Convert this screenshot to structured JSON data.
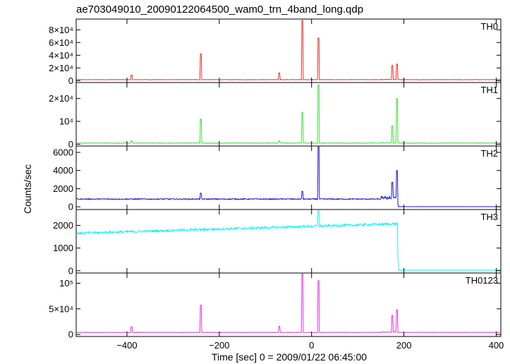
{
  "chart_data": {
    "type": "line",
    "title": "ae703049010_20090122064500_wam0_trn_4band_long.qdp",
    "xlabel": "Time [sec] 0 = 2009/01/22 06:45:00",
    "ylabel": "Counts/sec",
    "xlim": [
      -510,
      410
    ],
    "x_ticks": [
      {
        "value": -400,
        "label": "−400"
      },
      {
        "value": -200,
        "label": "−200"
      },
      {
        "value": 0,
        "label": "0"
      },
      {
        "value": 200,
        "label": "200"
      },
      {
        "value": 400,
        "label": "400"
      }
    ],
    "panels": [
      {
        "label": "TH0",
        "color": "#e8302a",
        "ylim": [
          -3000,
          97000
        ],
        "baseline": 1500,
        "noise": 300,
        "drop": false,
        "yticks": [
          {
            "value": 0,
            "label": "0"
          },
          {
            "value": 20000,
            "label": "2×10⁴"
          },
          {
            "value": 40000,
            "label": "4×10⁴"
          },
          {
            "value": 60000,
            "label": "6×10⁴"
          },
          {
            "value": 80000,
            "label": "8×10⁴"
          }
        ],
        "spikes": [
          [
            -390,
            9000
          ],
          [
            -240,
            42000
          ],
          [
            -70,
            12000
          ],
          [
            -20,
            95000
          ],
          [
            15,
            67000
          ],
          [
            175,
            24000
          ],
          [
            185,
            26000
          ]
        ]
      },
      {
        "label": "TH1",
        "color": "#3fe03a",
        "ylim": [
          -800,
          27000
        ],
        "baseline": 500,
        "noise": 120,
        "drop": false,
        "yticks": [
          {
            "value": 0,
            "label": "0"
          },
          {
            "value": 10000,
            "label": "10⁴"
          },
          {
            "value": 20000,
            "label": "2×10⁴"
          }
        ],
        "spikes": [
          [
            -390,
            1500
          ],
          [
            -240,
            11000
          ],
          [
            -70,
            1500
          ],
          [
            -20,
            14000
          ],
          [
            15,
            26000
          ],
          [
            175,
            8000
          ],
          [
            185,
            20000
          ]
        ]
      },
      {
        "label": "TH2",
        "color": "#1a1ac8",
        "ylim": [
          -300,
          6700
        ],
        "baseline": 850,
        "noise": 60,
        "drop": true,
        "yticks": [
          {
            "value": 0,
            "label": "0"
          },
          {
            "value": 2000,
            "label": "2000"
          },
          {
            "value": 4000,
            "label": "4000"
          },
          {
            "value": 6000,
            "label": "6000"
          }
        ],
        "spikes": [
          [
            -240,
            1500
          ],
          [
            -20,
            1700
          ],
          [
            15,
            6600
          ],
          [
            175,
            2700
          ],
          [
            185,
            4000
          ]
        ]
      },
      {
        "label": "TH3",
        "color": "#1ef0f0",
        "ylim": [
          -100,
          2700
        ],
        "baseline": 1650,
        "slope": 0.6,
        "noise": 55,
        "drop": true,
        "yticks": [
          {
            "value": 0,
            "label": "0"
          },
          {
            "value": 1000,
            "label": "1000"
          },
          {
            "value": 2000,
            "label": "2000"
          }
        ],
        "spikes": [
          [
            15,
            2650
          ]
        ]
      },
      {
        "label": "TH0123",
        "color": "#e830e8",
        "ylim": [
          -4000,
          120000
        ],
        "baseline": 4000,
        "noise": 400,
        "drop": false,
        "yticks": [
          {
            "value": 0,
            "label": "0"
          },
          {
            "value": 50000,
            "label": "5×10⁴"
          },
          {
            "value": 100000,
            "label": "10⁵"
          }
        ],
        "spikes": [
          [
            -390,
            15000
          ],
          [
            -240,
            57000
          ],
          [
            -70,
            16000
          ],
          [
            -20,
            118000
          ],
          [
            15,
            105000
          ],
          [
            175,
            37000
          ],
          [
            185,
            48000
          ]
        ]
      }
    ]
  }
}
